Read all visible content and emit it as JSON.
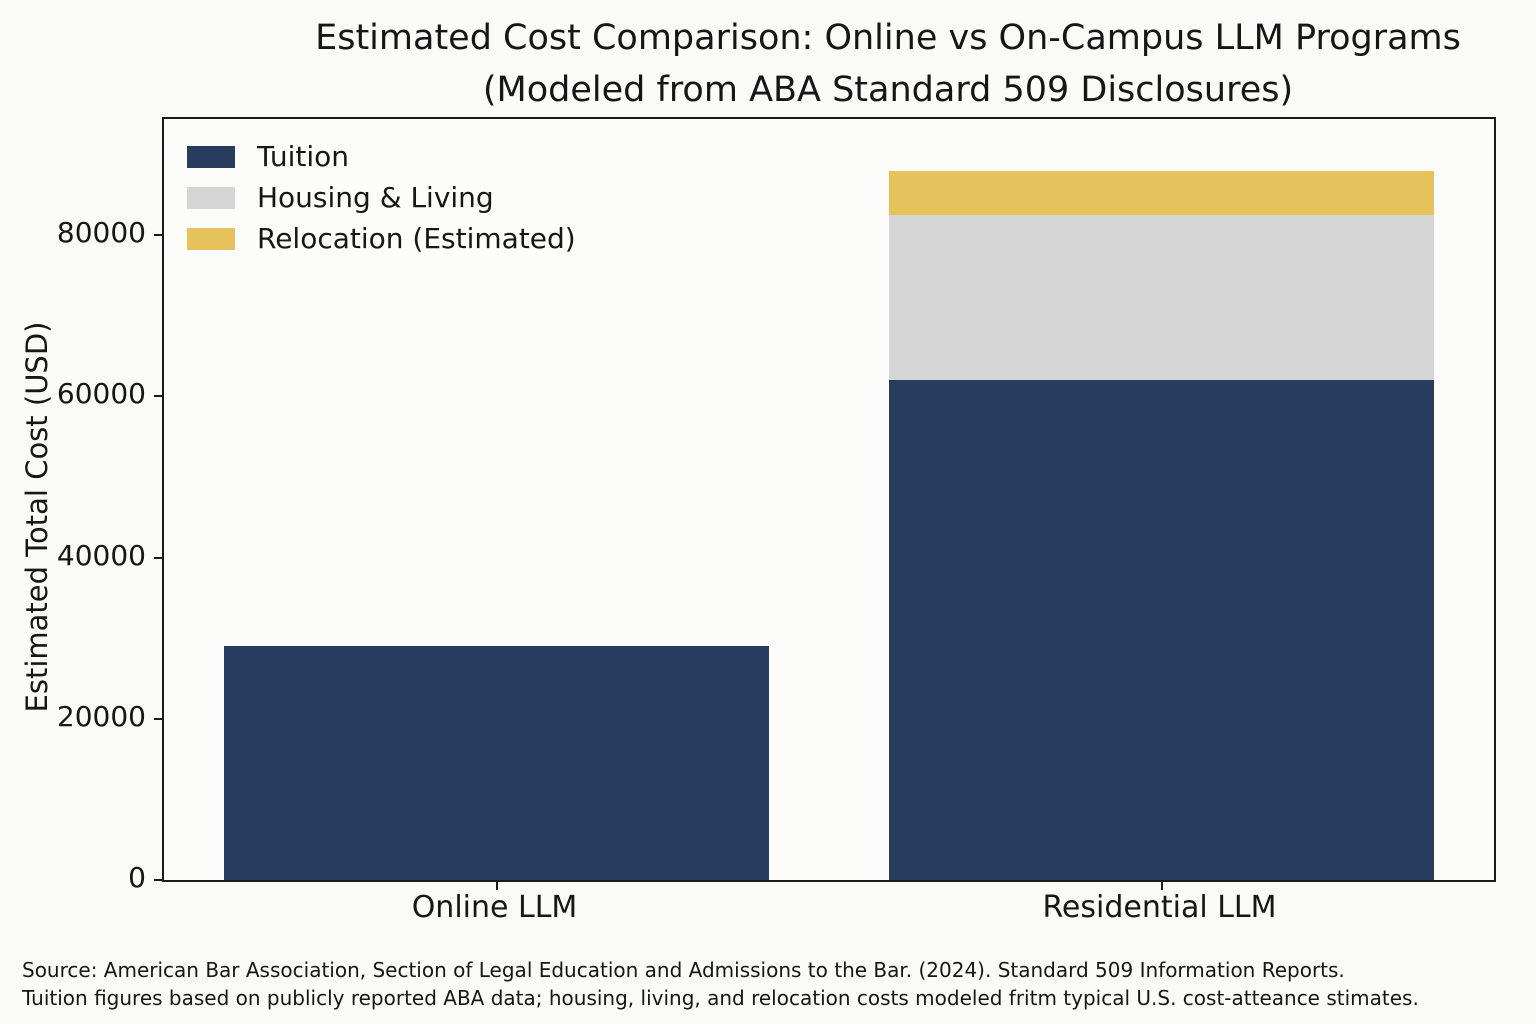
{
  "title": {
    "line1": "Estimated Cost Comparison: Online vs On-Campus LLM Programs",
    "line2": "(Modeled from ABA Standard 509 Disclosures)"
  },
  "y_axis": {
    "label": "Estimated Total Cost (USD)"
  },
  "legend": [
    {
      "label": "Tuition",
      "color": "#283c60"
    },
    {
      "label": "Housing & Living",
      "color": "#d5d5d5"
    },
    {
      "label": "Relocation (Estimated)",
      "color": "#e5c25c"
    }
  ],
  "footer": {
    "line1": "Source: American Bar Association, Section of Legal Education and Admissions to the Bar. (2024). Standard 509 Information Reports.",
    "line2": "Tuition figures based on publicly reported ABA data; housing, living, and relocation costs modeled fritm typical U.S. cost-atteance stimates."
  },
  "chart_data": {
    "type": "bar",
    "stacked": true,
    "title": "Estimated Cost Comparison: Online vs On-Campus LLM Programs (Modeled from ABA Standard 509 Disclosures)",
    "categories": [
      "Online LLM",
      "Residential LLM"
    ],
    "series": [
      {
        "name": "Tuition",
        "color": "#283c60",
        "values": [
          29000,
          62000
        ]
      },
      {
        "name": "Housing & Living",
        "color": "#d5d5d5",
        "values": [
          0,
          20500
        ]
      },
      {
        "name": "Relocation (Estimated)",
        "color": "#e5c25c",
        "values": [
          0,
          5500
        ]
      }
    ],
    "xlabel": "",
    "ylabel": "Estimated Total Cost (USD)",
    "ylim": [
      0,
      94400
    ],
    "yticks": [
      0,
      20000,
      40000,
      60000,
      80000
    ],
    "grid": false,
    "legend_position": "upper left",
    "bar_width_fraction": 0.41
  }
}
